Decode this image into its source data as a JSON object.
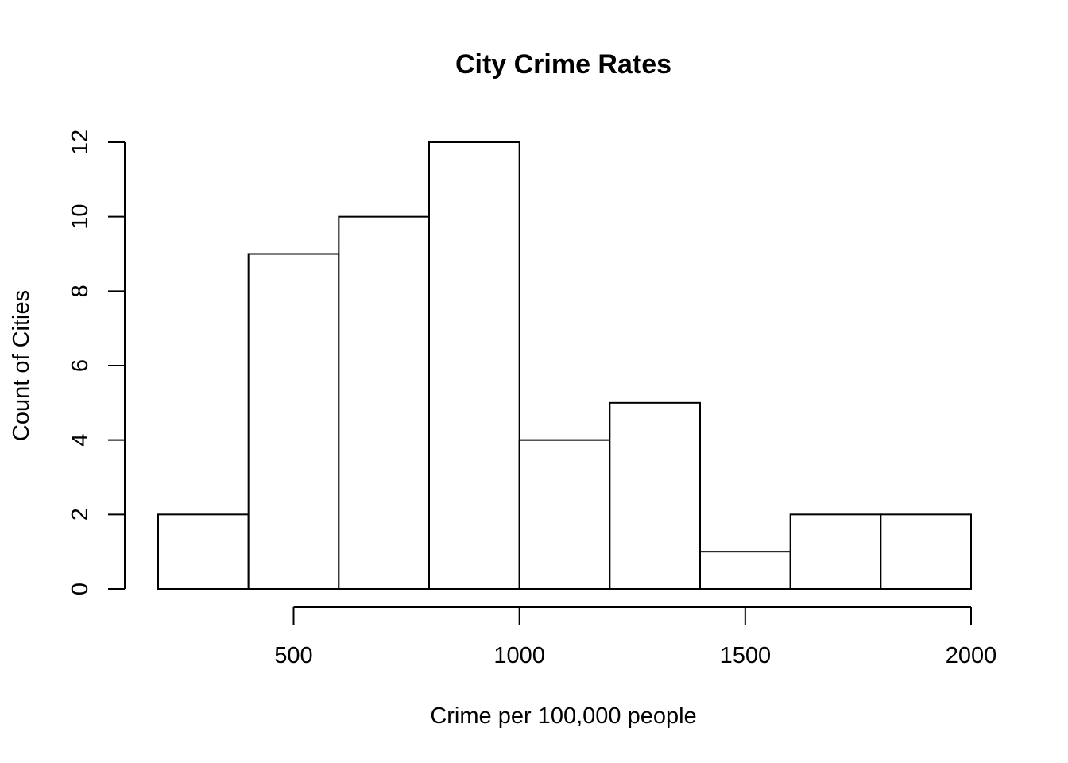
{
  "chart_data": {
    "type": "bar",
    "subtype": "histogram",
    "title": "City Crime Rates",
    "xlabel": "Crime per 100,000 people",
    "ylabel": "Count of Cities",
    "bins": [
      {
        "start": 200,
        "end": 400,
        "count": 2
      },
      {
        "start": 400,
        "end": 600,
        "count": 9
      },
      {
        "start": 600,
        "end": 800,
        "count": 10
      },
      {
        "start": 800,
        "end": 1000,
        "count": 12
      },
      {
        "start": 1000,
        "end": 1200,
        "count": 4
      },
      {
        "start": 1200,
        "end": 1400,
        "count": 5
      },
      {
        "start": 1400,
        "end": 1600,
        "count": 1
      },
      {
        "start": 1600,
        "end": 1800,
        "count": 2
      },
      {
        "start": 1800,
        "end": 2000,
        "count": 2
      }
    ],
    "x_ticks": [
      "500",
      "1000",
      "1500",
      "2000"
    ],
    "y_ticks": [
      "0",
      "2",
      "4",
      "6",
      "8",
      "10",
      "12"
    ],
    "xlim": [
      125,
      2000
    ],
    "ylim": [
      0,
      12
    ],
    "grid": false,
    "bar_fill": "#ffffff",
    "bar_stroke": "#000000"
  }
}
